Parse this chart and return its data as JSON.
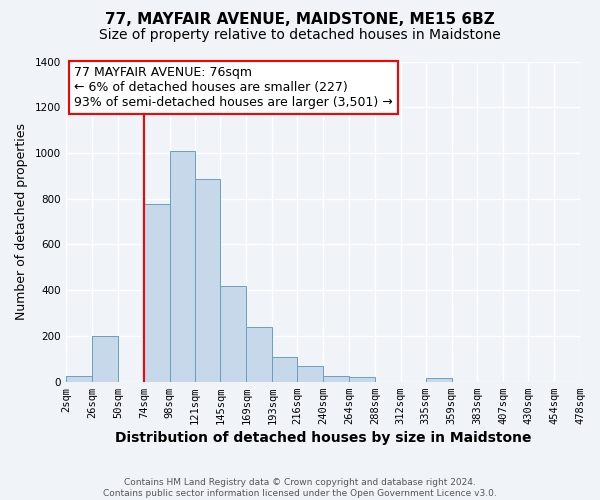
{
  "title": "77, MAYFAIR AVENUE, MAIDSTONE, ME15 6BZ",
  "subtitle": "Size of property relative to detached houses in Maidstone",
  "xlabel": "Distribution of detached houses by size in Maidstone",
  "ylabel": "Number of detached properties",
  "bar_color": "#c8d8eb",
  "bar_edge_color": "#6a9ec0",
  "background_color": "#f0f4f8",
  "grid_color": "#ffffff",
  "bin_edges": [
    2,
    26,
    50,
    74,
    98,
    121,
    145,
    169,
    193,
    216,
    240,
    264,
    288,
    312,
    335,
    359,
    383,
    407,
    430,
    454,
    478
  ],
  "bin_labels": [
    "2sqm",
    "26sqm",
    "50sqm",
    "74sqm",
    "98sqm",
    "121sqm",
    "145sqm",
    "169sqm",
    "193sqm",
    "216sqm",
    "240sqm",
    "264sqm",
    "288sqm",
    "312sqm",
    "335sqm",
    "359sqm",
    "383sqm",
    "407sqm",
    "430sqm",
    "454sqm",
    "478sqm"
  ],
  "counts": [
    25,
    200,
    0,
    775,
    1010,
    885,
    420,
    240,
    110,
    70,
    25,
    20,
    0,
    0,
    15,
    0,
    0,
    0,
    0,
    0
  ],
  "property_line_x": 74,
  "ylim": [
    0,
    1400
  ],
  "yticks": [
    0,
    200,
    400,
    600,
    800,
    1000,
    1200,
    1400
  ],
  "annotation_title": "77 MAYFAIR AVENUE: 76sqm",
  "annotation_line1": "← 6% of detached houses are smaller (227)",
  "annotation_line2": "93% of semi-detached houses are larger (3,501) →",
  "footer_line1": "Contains HM Land Registry data © Crown copyright and database right 2024.",
  "footer_line2": "Contains public sector information licensed under the Open Government Licence v3.0.",
  "title_fontsize": 11,
  "subtitle_fontsize": 10,
  "xlabel_fontsize": 10,
  "ylabel_fontsize": 9,
  "tick_fontsize": 7.5,
  "annotation_fontsize": 9,
  "footer_fontsize": 6.5
}
